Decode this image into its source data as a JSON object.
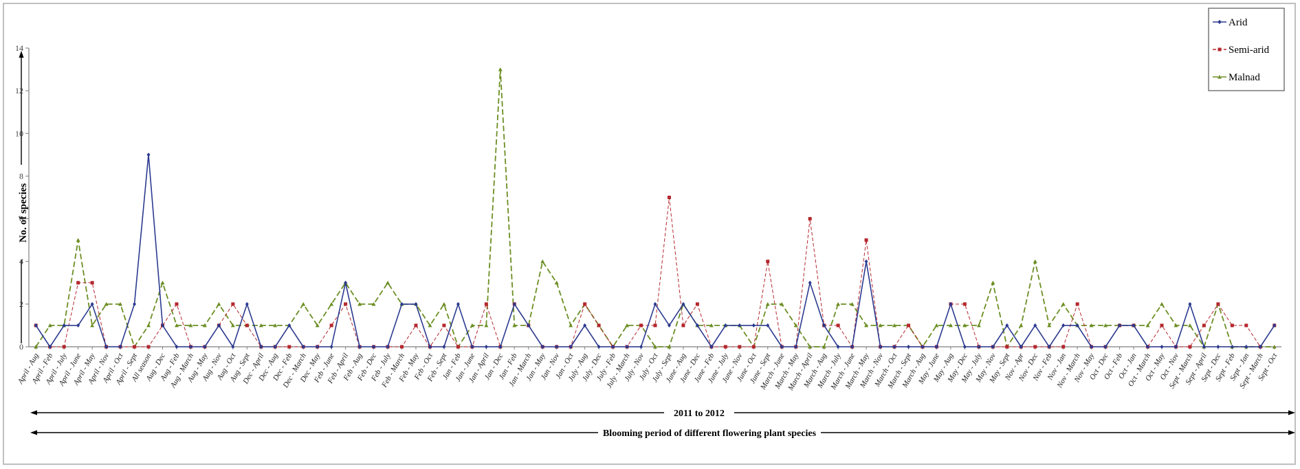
{
  "chart_data": {
    "type": "line",
    "ylabel": "No. of species",
    "ylim": [
      0,
      14
    ],
    "yticks": [
      0,
      2,
      4,
      6,
      8,
      10,
      12,
      14
    ],
    "xlabel_period": "2011 to 2012",
    "xlabel": "Blooming period of different flowering plant species",
    "legend_position": "top-right",
    "categories": [
      "April - Aug",
      "April - Feb",
      "April - July",
      "April - June",
      "April - May",
      "April - Nov",
      "April - Oct",
      "April - Sept",
      "All season",
      "Aug - Dec",
      "Aug - Feb",
      "Aug - March",
      "Aug - May",
      "Aug - Nov",
      "Aug - Oct",
      "Aug - Sept",
      "Dec - April",
      "Dec - Aug",
      "Dec - Feb",
      "Dec - March",
      "Dec - May",
      "Feb - June",
      "Feb - April",
      "Feb - Aug",
      "Feb - Dec",
      "Feb - July",
      "Feb - March",
      "Feb - May",
      "Feb - Oct",
      "Feb - Sept",
      "Jan - Feb",
      "Jan - June",
      "Jan - April",
      "Jan - Dec",
      "Jan - Feb",
      "Jan - March",
      "Jan - May",
      "Jan - Nov",
      "Jan - Oct",
      "July - Aug",
      "July - Dec",
      "July - Feb",
      "July - March",
      "July - Nov",
      "July - Oct",
      "July - Sept",
      "June - Aug",
      "June - Dec",
      "June - Feb",
      "June - July",
      "June - Nov",
      "June - Oct",
      "June - Sept",
      "March - June",
      "March - May",
      "March - April",
      "March - Aug",
      "March - July",
      "March - June",
      "March - May",
      "March - Nov",
      "March - Oct",
      "March - Sept",
      "March - Aug",
      "May - June",
      "May - Aug",
      "May - Dec",
      "May - July",
      "May - Nov",
      "May - Sept",
      "Nov - Apr",
      "Nov - Dec",
      "Nov - Feb",
      "Nov - Jan",
      "Nov - March",
      "Nov - May",
      "Oct - Dec",
      "Oct - Feb",
      "Oct - Jan",
      "Oct - March",
      "Oct - May",
      "Oct - Nov",
      "Sept - March",
      "Sept - April",
      "Sept - Dec",
      "Sept - Feb",
      "Sept - Jan",
      "Sept - March",
      "Sept - Oct"
    ],
    "series": [
      {
        "name": "Arid",
        "color": "#2b3a8f",
        "marker": "diamond",
        "values": [
          1,
          0,
          1,
          1,
          2,
          0,
          0,
          2,
          9,
          1,
          0,
          0,
          0,
          1,
          0,
          2,
          0,
          0,
          1,
          0,
          0,
          0,
          3,
          0,
          0,
          0,
          2,
          2,
          0,
          0,
          2,
          0,
          0,
          0,
          2,
          1,
          0,
          0,
          0,
          1,
          0,
          0,
          0,
          0,
          2,
          1,
          2,
          1,
          0,
          1,
          1,
          1,
          1,
          0,
          0,
          3,
          1,
          0,
          0,
          4,
          0,
          0,
          0,
          0,
          0,
          2,
          0,
          0,
          0,
          1,
          0,
          1,
          0,
          1,
          1,
          0,
          0,
          1,
          1,
          0,
          0,
          0,
          2,
          0,
          0,
          0,
          0,
          0,
          1
        ]
      },
      {
        "name": "Semi-arid",
        "color": "#b5272d",
        "marker": "square",
        "values": [
          1,
          0,
          0,
          3,
          3,
          0,
          0,
          0,
          0,
          1,
          2,
          0,
          0,
          1,
          2,
          1,
          0,
          0,
          0,
          0,
          0,
          1,
          2,
          0,
          0,
          0,
          0,
          1,
          0,
          1,
          0,
          0,
          2,
          0,
          2,
          1,
          0,
          0,
          0,
          2,
          1,
          0,
          0,
          1,
          1,
          7,
          1,
          2,
          0,
          0,
          0,
          0,
          4,
          0,
          0,
          6,
          1,
          1,
          0,
          5,
          0,
          0,
          1,
          0,
          0,
          2,
          2,
          0,
          0,
          0,
          0,
          0,
          0,
          0,
          2,
          0,
          0,
          1,
          1,
          0,
          1,
          0,
          0,
          1,
          2,
          1,
          1,
          0,
          1
        ]
      },
      {
        "name": "Malnad",
        "color": "#6b8e23",
        "marker": "triangle",
        "values": [
          0,
          1,
          1,
          5,
          1,
          2,
          2,
          0,
          1,
          3,
          1,
          1,
          1,
          2,
          1,
          1,
          1,
          1,
          1,
          2,
          1,
          2,
          3,
          2,
          2,
          3,
          2,
          2,
          1,
          2,
          0,
          1,
          1,
          13,
          1,
          1,
          4,
          3,
          1,
          2,
          1,
          0,
          1,
          1,
          0,
          0,
          2,
          1,
          1,
          1,
          1,
          0,
          2,
          2,
          1,
          0,
          0,
          2,
          2,
          1,
          1,
          1,
          1,
          0,
          1,
          1,
          1,
          1,
          3,
          0,
          1,
          4,
          1,
          2,
          1,
          1,
          1,
          1,
          1,
          1,
          2,
          1,
          1,
          0,
          2,
          0,
          0,
          0,
          0
        ]
      }
    ]
  }
}
